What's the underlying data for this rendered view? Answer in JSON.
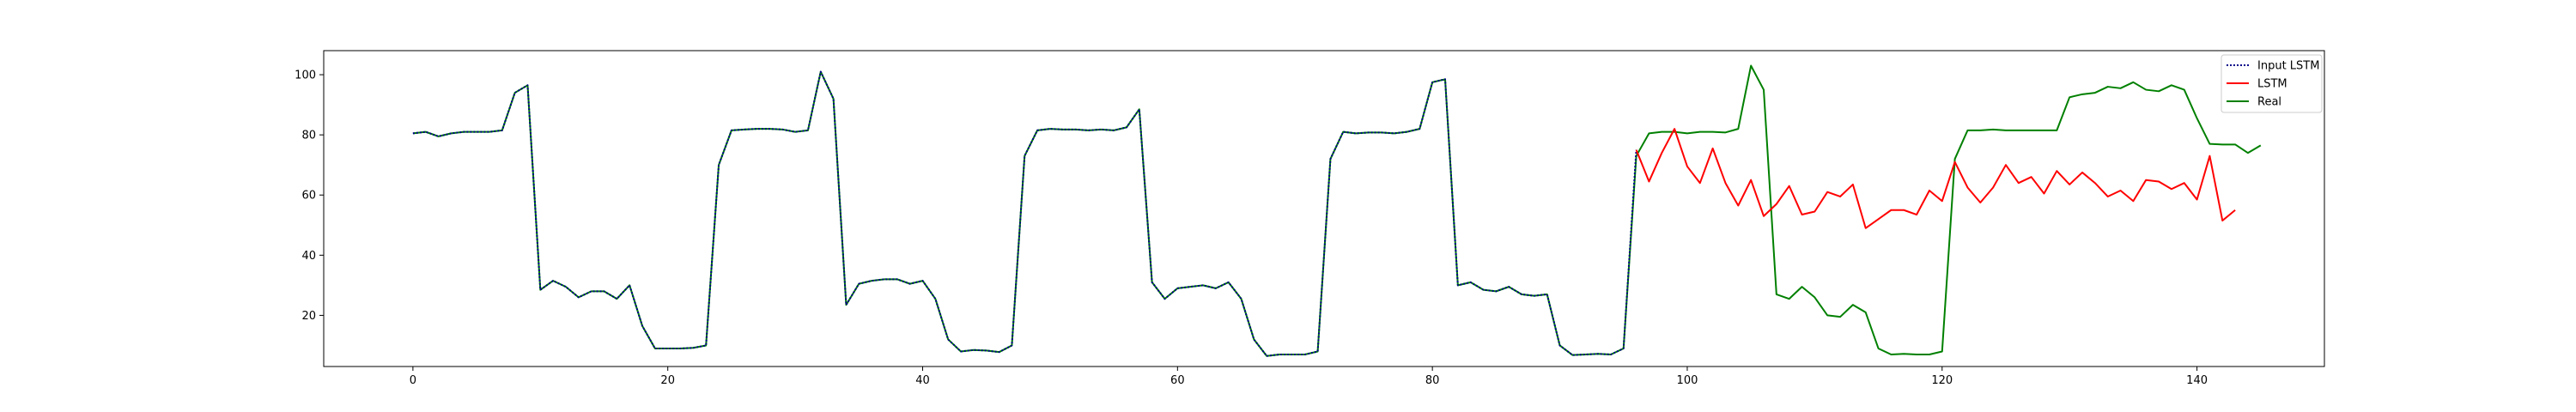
{
  "chart_data": {
    "type": "line",
    "title": "",
    "xlabel": "",
    "ylabel": "",
    "xlim": [
      -7,
      150
    ],
    "ylim": [
      3,
      108
    ],
    "xticks": [
      0,
      20,
      40,
      60,
      80,
      100,
      120,
      140
    ],
    "yticks": [
      20,
      40,
      60,
      80,
      100
    ],
    "xtick_labels": [
      "0",
      "20",
      "40",
      "60",
      "80",
      "100",
      "120",
      "140"
    ],
    "ytick_labels": [
      "20",
      "40",
      "60",
      "80",
      "100"
    ],
    "grid": false,
    "legend_position": "top-right",
    "series": [
      {
        "name": "Input LSTM",
        "color": "#00008b",
        "style": "dotted",
        "x_start": 0,
        "values": [
          80.5,
          81,
          79.5,
          80.5,
          81,
          81,
          81,
          81.5,
          94,
          96.5,
          28.5,
          31.5,
          29.5,
          26,
          28,
          28,
          25.5,
          30,
          16.5,
          9,
          9,
          9,
          9.2,
          10,
          70,
          81.5,
          81.8,
          82,
          82,
          81.8,
          81,
          81.5,
          101,
          92,
          23.5,
          30.5,
          31.5,
          32,
          32,
          30.5,
          31.5,
          25.5,
          12,
          8,
          8.5,
          8.3,
          7.8,
          10,
          73,
          81.5,
          82,
          81.8,
          81.8,
          81.5,
          81.8,
          81.5,
          82.5,
          88.5,
          31,
          25.5,
          29,
          29.5,
          30,
          29,
          31,
          25.5,
          12,
          6.5,
          7,
          7,
          7,
          8,
          72,
          81,
          80.5,
          80.8,
          80.8,
          80.5,
          81,
          82,
          97.5,
          98.5,
          30,
          31,
          28.5,
          28,
          29.5,
          27,
          26.5,
          27,
          10,
          6.8,
          7,
          7.2,
          7,
          9,
          75
        ]
      },
      {
        "name": "LSTM",
        "color": "#ff0000",
        "style": "solid",
        "x_start": 96,
        "values": [
          75,
          64.5,
          74,
          82,
          69.5,
          64,
          75.5,
          64,
          56.5,
          65,
          53,
          57,
          63,
          53.5,
          54.5,
          61,
          59.5,
          63.5,
          49,
          52,
          55,
          55,
          53.5,
          61.5,
          58,
          71,
          62.5,
          57.5,
          62.5,
          70,
          64,
          66,
          60.5,
          68,
          63.5,
          67.5,
          64,
          59.5,
          61.5,
          58,
          65,
          64.5,
          62,
          64,
          58.5,
          73,
          51.5,
          55
        ]
      },
      {
        "name": "Real",
        "color": "#008000",
        "style": "solid",
        "x_start": 0,
        "values": [
          80.5,
          81,
          79.5,
          80.5,
          81,
          81,
          81,
          81.5,
          94,
          96.5,
          28.5,
          31.5,
          29.5,
          26,
          28,
          28,
          25.5,
          30,
          16.5,
          9,
          9,
          9,
          9.2,
          10,
          70,
          81.5,
          81.8,
          82,
          82,
          81.8,
          81,
          81.5,
          101,
          92,
          23.5,
          30.5,
          31.5,
          32,
          32,
          30.5,
          31.5,
          25.5,
          12,
          8,
          8.5,
          8.3,
          7.8,
          10,
          73,
          81.5,
          82,
          81.8,
          81.8,
          81.5,
          81.8,
          81.5,
          82.5,
          88.5,
          31,
          25.5,
          29,
          29.5,
          30,
          29,
          31,
          25.5,
          12,
          6.5,
          7,
          7,
          7,
          8,
          72,
          81,
          80.5,
          80.8,
          80.8,
          80.5,
          81,
          82,
          97.5,
          98.5,
          30,
          31,
          28.5,
          28,
          29.5,
          27,
          26.5,
          27,
          10,
          6.8,
          7,
          7.2,
          7,
          9,
          73,
          80.5,
          81,
          81,
          80.5,
          81,
          81,
          80.8,
          82,
          103,
          95,
          27,
          25.5,
          29.5,
          26,
          20,
          19.5,
          23.5,
          21,
          9,
          7,
          7.2,
          7,
          7,
          8,
          72,
          81.5,
          81.5,
          81.8,
          81.5,
          81.5,
          81.5,
          81.5,
          81.5,
          92.5,
          93.5,
          94,
          96,
          95.5,
          97.5,
          95,
          94.5,
          96.5,
          95,
          85.5,
          77,
          76.8,
          76.8,
          74,
          76.5
        ]
      }
    ]
  }
}
